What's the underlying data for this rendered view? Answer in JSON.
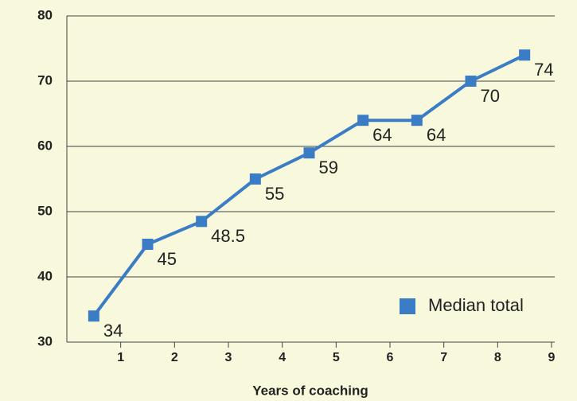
{
  "chart_data": {
    "type": "line",
    "x_label": "Years of coaching",
    "x": [
      0.5,
      1.5,
      2.5,
      3.5,
      4.5,
      5.5,
      6.5,
      7.5,
      8.5
    ],
    "series": [
      {
        "name": "Median total",
        "color": "#3a7dc4",
        "values": [
          34,
          45,
          48.5,
          55,
          59,
          64,
          64,
          70,
          74
        ]
      }
    ],
    "xlim": [
      0,
      9
    ],
    "xticks": [
      1,
      2,
      3,
      4,
      5,
      6,
      7,
      8,
      9
    ],
    "ylim": [
      30,
      80
    ],
    "yticks": [
      30,
      40,
      50,
      60,
      70,
      80
    ],
    "grid": true,
    "legend": "lower right"
  }
}
